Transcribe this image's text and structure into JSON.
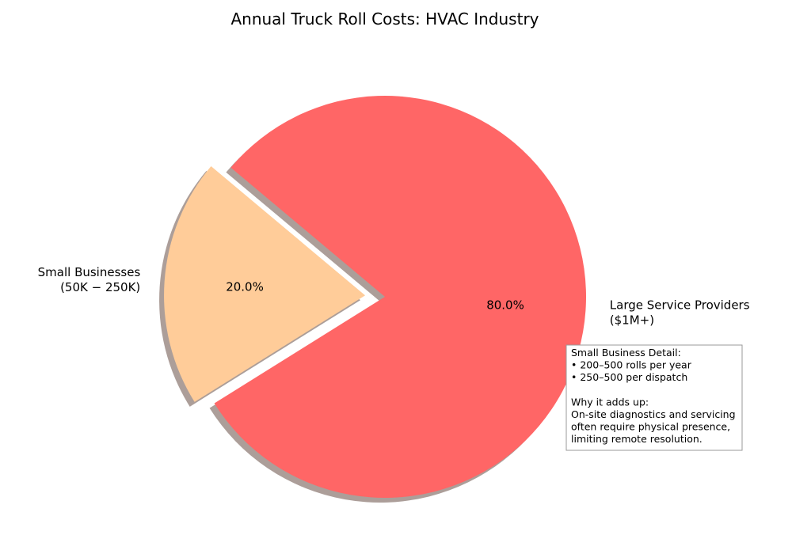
{
  "chart_data": {
    "type": "pie",
    "title": "Annual Truck Roll Costs: HVAC Industry",
    "start_angle_deg": 140,
    "direction": "counterclockwise",
    "shadow": true,
    "slices": [
      {
        "label_lines": [
          "Small Businesses",
          "(50K − 250K)"
        ],
        "value": 20,
        "percent_label": "20.0%",
        "color": "#FFCC99",
        "exploded": true
      },
      {
        "label_lines": [
          "Large Service Providers",
          "($1M+)"
        ],
        "value": 80,
        "percent_label": "80.0%",
        "color": "#FF6666",
        "exploded": false
      }
    ],
    "annotation": {
      "lines": [
        "Small Business Detail:",
        "• 200–500 rolls per year",
        "• 250–500 per dispatch",
        "",
        "Why it adds up:",
        "On-site diagnostics and servicing",
        "often require physical presence,",
        "limiting remote resolution."
      ]
    }
  }
}
